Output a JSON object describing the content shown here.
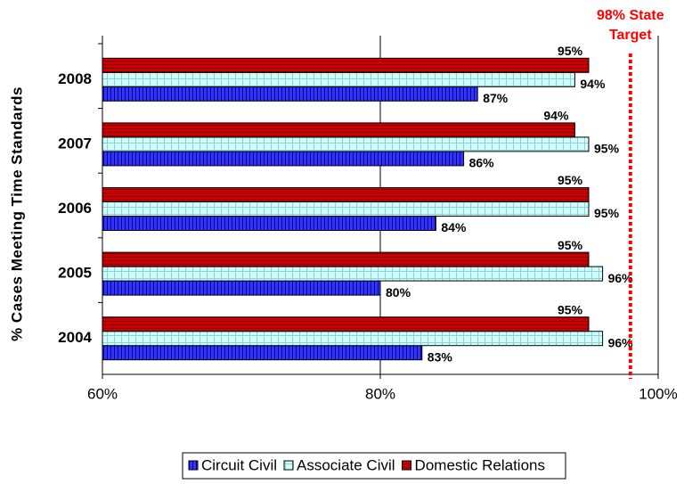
{
  "chart_data": {
    "type": "bar",
    "orientation": "horizontal",
    "y_label": "% Cases Meeting Time Standards",
    "categories": [
      "2008",
      "2007",
      "2006",
      "2005",
      "2004"
    ],
    "series": [
      {
        "name": "Circuit Civil",
        "color": "#3333ff",
        "values": [
          87,
          86,
          84,
          80,
          83
        ],
        "value_labels": [
          "87%",
          "86%",
          "84%",
          "80%",
          "83%"
        ]
      },
      {
        "name": "Associate Civil",
        "color": "#ccffff",
        "values": [
          94,
          95,
          95,
          96,
          96
        ],
        "value_labels": [
          "94%",
          "95%",
          "95%",
          "96%",
          "96%"
        ]
      },
      {
        "name": "Domestic Relations",
        "color": "#cc0000",
        "values": [
          95,
          94,
          95,
          95,
          95
        ],
        "value_labels": [
          "95%",
          "94%",
          "95%",
          "95%",
          "95%"
        ]
      }
    ],
    "xlim": [
      60,
      100
    ],
    "xticks": [
      {
        "value": 60,
        "label": "60%"
      },
      {
        "value": 80,
        "label": "80%"
      },
      {
        "value": 100,
        "label": "100%"
      }
    ],
    "grid": true,
    "legend": "bottom",
    "annotation": {
      "value": 98,
      "text": [
        "98% State",
        "Target"
      ],
      "color": "#ff0000"
    }
  }
}
